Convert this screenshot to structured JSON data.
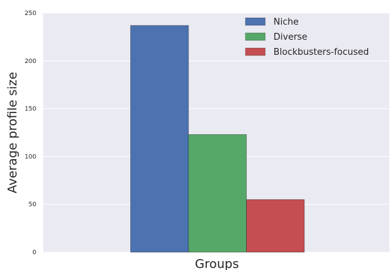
{
  "chart_data": {
    "type": "bar",
    "xlabel": "Groups",
    "ylabel": "Average profile size",
    "ylim": [
      0,
      250
    ],
    "yticks": [
      0,
      50,
      100,
      150,
      200,
      250
    ],
    "grid": true,
    "legend_position": "top-right",
    "series": [
      {
        "name": "Niche",
        "value": 237,
        "color": "#4C72B0"
      },
      {
        "name": "Diverse",
        "value": 123,
        "color": "#55A868"
      },
      {
        "name": "Blockbusters-focused",
        "value": 55,
        "color": "#C44E52"
      }
    ]
  },
  "style": {
    "plot_background": "#EAEAF2",
    "grid_color": "#FFFFFF",
    "text_color": "#262626"
  }
}
